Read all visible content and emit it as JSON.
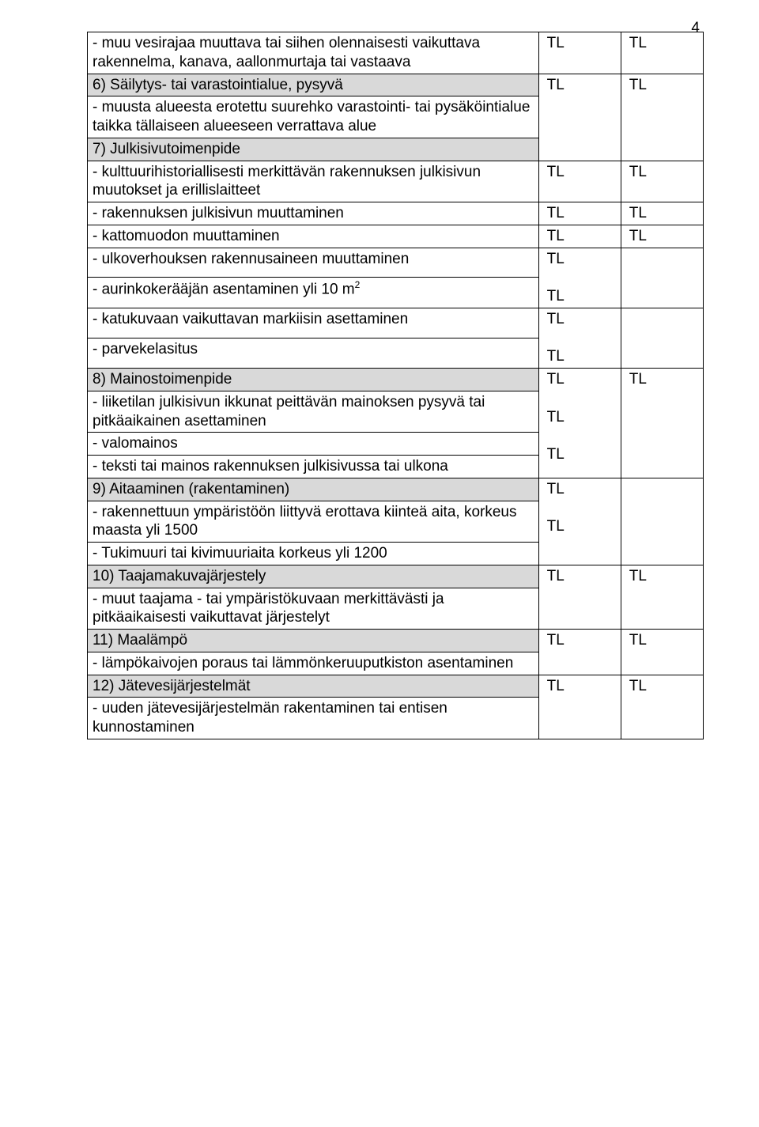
{
  "pageNumber": "4",
  "rows": [
    {
      "type": "data",
      "text": "- muu vesirajaa muuttava tai siihen olennaisesti vaikuttava rakennelma, kanava, aallonmurtaja tai vastaava",
      "c2": "TL",
      "c3": "TL"
    },
    {
      "type": "header",
      "text": "6) Säilytys- tai varastointialue, pysyvä"
    },
    {
      "type": "data",
      "text": "- muusta alueesta erotettu suurehko varastointi- tai  pysäköintialue taikka tällaiseen alueeseen verrattava alue",
      "c2": "TL",
      "c3": "TL"
    },
    {
      "type": "header",
      "text": "7) Julkisivutoimenpide"
    },
    {
      "type": "data",
      "text": "- kulttuurihistoriallisesti merkittävän rakennuksen julkisivun muutokset ja erillislaitteet",
      "c2": "TL",
      "c3": "TL"
    },
    {
      "type": "data",
      "text": "- rakennuksen julkisivun muuttaminen",
      "c2": "TL",
      "c3": "TL"
    },
    {
      "type": "data",
      "text": "- kattomuodon muuttaminen",
      "c2": "TL",
      "c3": "TL"
    },
    {
      "type": "data",
      "text": "- ulkoverhouksen rakennusaineen muuttaminen",
      "c2": "TL",
      "c3": ""
    },
    {
      "type": "data",
      "text": "- aurinkokerääjän asentaminen yli 10 m",
      "sup": "2",
      "c2": "TL",
      "c3": ""
    },
    {
      "type": "data",
      "text": "- katukuvaan vaikuttavan markiisin asettaminen",
      "c2": "TL",
      "c3": ""
    },
    {
      "type": "data",
      "text": "- parvekelasitus",
      "c2": "TL",
      "c3": ""
    },
    {
      "type": "header",
      "text": "8) Mainostoimenpide"
    },
    {
      "type": "data",
      "text": "- liiketilan julkisivun ikkunat peittävän mainoksen pysyvä tai pitkäaikainen asettaminen",
      "c2": "TL",
      "c3": "TL"
    },
    {
      "type": "data",
      "text": "- valomainos",
      "c2": "TL",
      "c3": ""
    },
    {
      "type": "data",
      "text": "- teksti tai mainos rakennuksen julkisivussa tai ulkona",
      "c2": "TL",
      "c3": ""
    },
    {
      "type": "header",
      "text": "9) Aitaaminen (rakentaminen)"
    },
    {
      "type": "data",
      "text": "- rakennettuun ympäristöön liittyvä erottava kiinteä aita, korkeus maasta yli 1500",
      "c2": "TL",
      "c3": ""
    },
    {
      "type": "data",
      "text": "- Tukimuuri tai kivimuuriaita korkeus yli 1200",
      "c2": "TL",
      "c3": ""
    },
    {
      "type": "header",
      "text": "10) Taajamakuvajärjestely"
    },
    {
      "type": "data",
      "text": "- muut taajama - tai ympäristökuvaan merkittävästi ja pitkäaikaisesti vaikuttavat järjestelyt",
      "c2": "TL",
      "c3": "TL"
    },
    {
      "type": "header",
      "text": "11) Maalämpö"
    },
    {
      "type": "data",
      "text": "- lämpökaivojen poraus tai lämmönkeruuputkiston asentaminen",
      "c2": "TL",
      "c3": "TL"
    },
    {
      "type": "header",
      "text": "12) Jätevesijärjestelmät"
    },
    {
      "type": "data",
      "text": "- uuden jätevesijärjestelmän rakentaminen tai entisen kunnostaminen",
      "c2": "TL",
      "c3": "TL"
    }
  ],
  "groups": [
    {
      "start": 0,
      "end": 0
    },
    {
      "start": 1,
      "end": 3
    },
    {
      "start": 4,
      "end": 4
    },
    {
      "start": 5,
      "end": 5
    },
    {
      "start": 6,
      "end": 6
    },
    {
      "start": 7,
      "end": 8
    },
    {
      "start": 9,
      "end": 10
    },
    {
      "start": 11,
      "end": 14
    },
    {
      "start": 15,
      "end": 17
    },
    {
      "start": 18,
      "end": 19
    },
    {
      "start": 20,
      "end": 21
    },
    {
      "start": 22,
      "end": 23
    }
  ],
  "colors": {
    "headerBg": "#d9d9d9",
    "border": "#000000",
    "text": "#000000",
    "background": "#ffffff"
  },
  "layout": {
    "pageWidth": 960,
    "pageHeight": 1425,
    "fontSize": 19,
    "col1WidthPct": 76,
    "col2WidthPct": 12,
    "col3WidthPct": 12
  }
}
